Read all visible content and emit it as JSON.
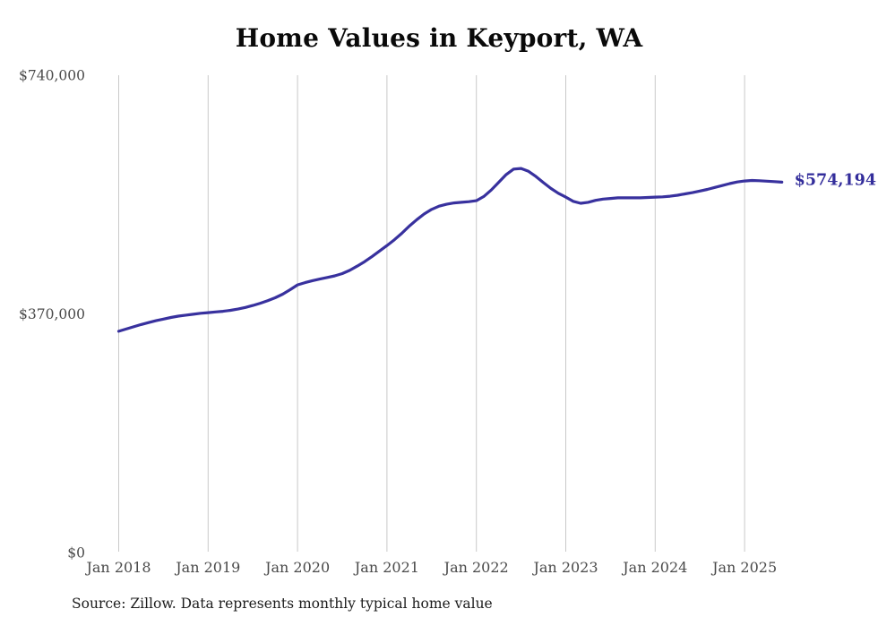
{
  "chart": {
    "title": "Home Values in Keyport, WA",
    "source": "Source: Zillow. Data represents monthly typical home value",
    "end_label": "$574,194"
  },
  "colors": {
    "line": "#38319e",
    "end_label": "#332d9b",
    "grid": "#c9c9c9",
    "axis_text": "#4a4a4a",
    "title_text": "#0a0a0a",
    "source_text": "#1c1c1c",
    "background": "#ffffff"
  },
  "chart_data": {
    "type": "line",
    "title": "Home Values in Keyport, WA",
    "xlabel": "",
    "ylabel": "",
    "ylim": [
      0,
      740000
    ],
    "grid": "vertical-only",
    "legend": "none",
    "y_ticks": [
      {
        "value": 740000,
        "label": "$740,000"
      },
      {
        "value": 370000,
        "label": "$370,000"
      },
      {
        "value": 0,
        "label": "$0"
      }
    ],
    "x_ticks": [
      {
        "month_index": 0,
        "label": "Jan 2018"
      },
      {
        "month_index": 12,
        "label": "Jan 2019"
      },
      {
        "month_index": 24,
        "label": "Jan 2020"
      },
      {
        "month_index": 36,
        "label": "Jan 2021"
      },
      {
        "month_index": 48,
        "label": "Jan 2022"
      },
      {
        "month_index": 60,
        "label": "Jan 2023"
      },
      {
        "month_index": 72,
        "label": "Jan 2024"
      },
      {
        "month_index": 84,
        "label": "Jan 2025"
      }
    ],
    "series": [
      {
        "name": "Typical home value (monthly)",
        "x_start": "Jan 2018",
        "x_step": "1 month",
        "x_end": "Jun 2025",
        "values": [
          343000,
          346500,
          350000,
          353500,
          356500,
          359500,
          362000,
          364500,
          366500,
          368000,
          369500,
          371000,
          372000,
          373000,
          374000,
          375500,
          377500,
          380000,
          383000,
          386500,
          390500,
          395000,
          400500,
          407500,
          415000,
          418500,
          421500,
          424000,
          426500,
          429000,
          432500,
          437500,
          444000,
          451000,
          459000,
          467500,
          476000,
          485000,
          495000,
          506000,
          516000,
          525000,
          532000,
          537000,
          540000,
          542000,
          543000,
          544000,
          545500,
          552000,
          562000,
          574000,
          586000,
          594500,
          595500,
          591000,
          583000,
          573500,
          564500,
          557000,
          551000,
          544500,
          541500,
          543000,
          546000,
          548000,
          549000,
          550000,
          550000,
          550000,
          550000,
          550500,
          551000,
          551500,
          552500,
          554000,
          556000,
          558000,
          560500,
          563000,
          566000,
          569000,
          572000,
          574500,
          576000,
          576800,
          576500,
          575800,
          575000,
          574194
        ]
      }
    ],
    "end_value": 574194,
    "end_value_label": "$574,194"
  }
}
